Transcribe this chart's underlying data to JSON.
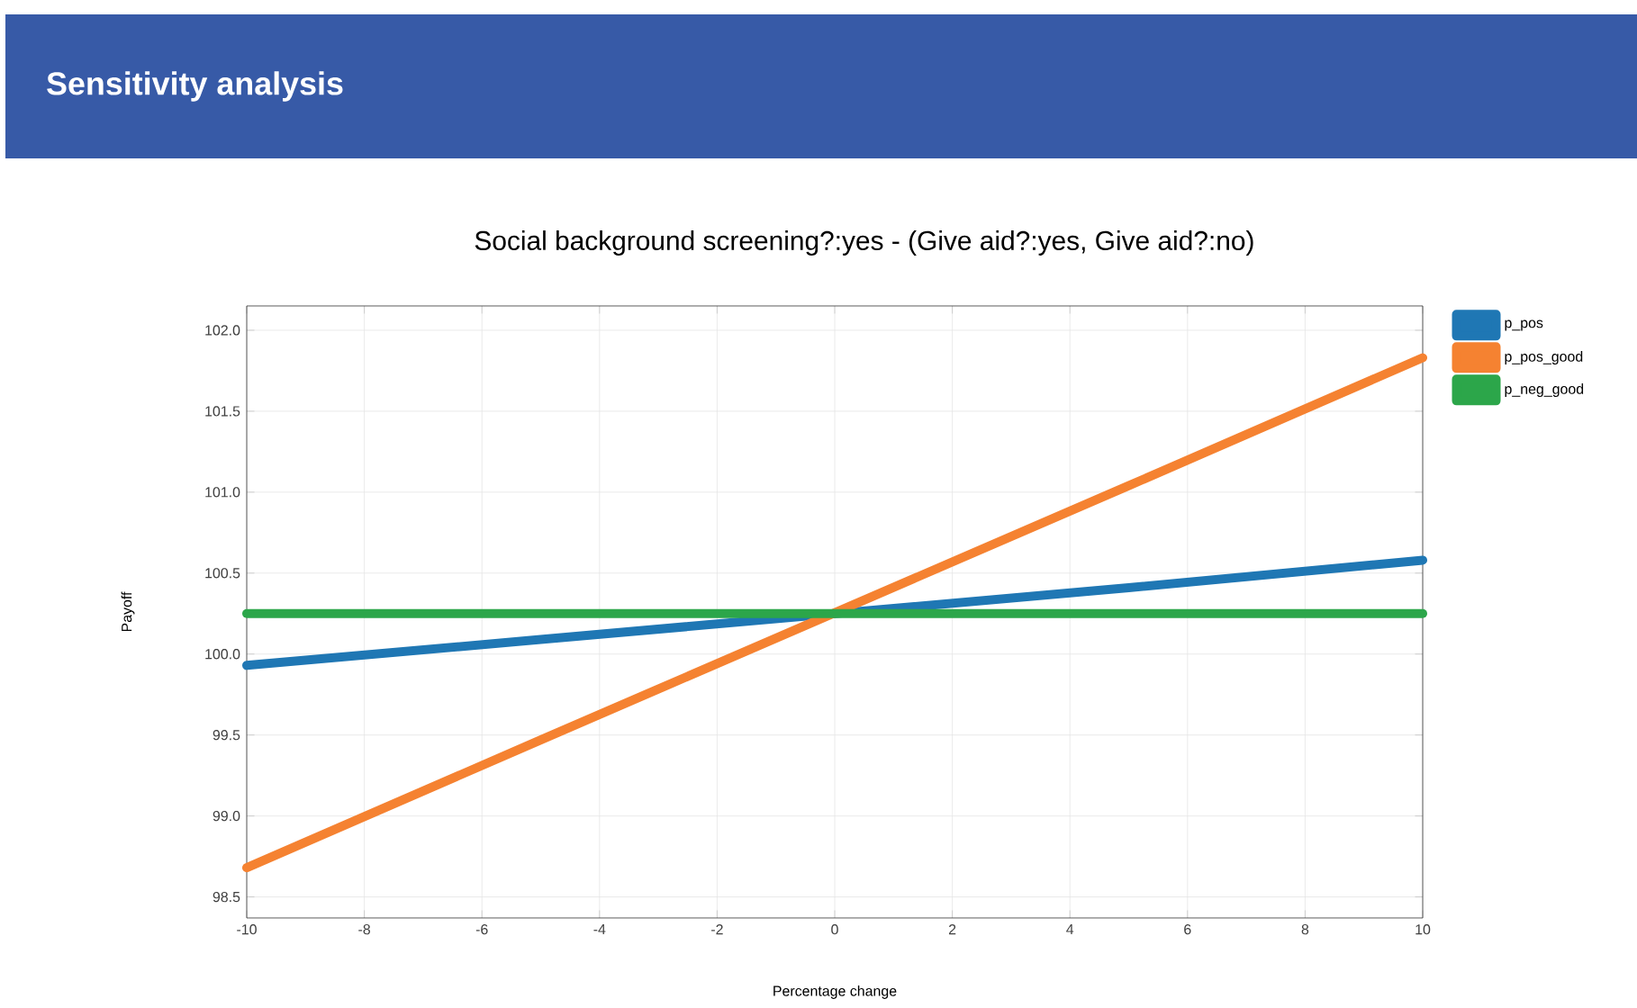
{
  "chart_data": {
    "type": "line",
    "title": "Sensitivity analysis",
    "subtitle": "Social background screening?:yes - (Give aid?:yes, Give aid?:no)",
    "xlabel": "Percentage change",
    "ylabel": "Payoff",
    "x": [
      -10,
      -5,
      5,
      10
    ],
    "series": [
      {
        "name": "p_pos",
        "color": "#1f77b4",
        "values": [
          99.93,
          100.09,
          100.41,
          100.58
        ]
      },
      {
        "name": "p_pos_good",
        "color": "#f58231",
        "values": [
          98.68,
          99.47,
          101.04,
          101.83
        ]
      },
      {
        "name": "p_neg_good",
        "color": "#2ca64a",
        "values": [
          100.25,
          100.25,
          100.25,
          100.25
        ]
      }
    ],
    "xlim": [
      -10,
      10
    ],
    "ylim": [
      98.37,
      102.15
    ],
    "xticks": [
      -10,
      -8,
      -6,
      -4,
      -2,
      0,
      2,
      4,
      6,
      8,
      10
    ],
    "yticks": [
      98.5,
      {
        "value": 99,
        "label": "99.0"
      },
      99.5,
      {
        "value": 100,
        "label": "100.0"
      },
      100.5,
      {
        "value": 101,
        "label": "101.0"
      },
      101.5,
      {
        "value": 102,
        "label": "102.0"
      }
    ],
    "grid": true,
    "legend": "top right"
  }
}
